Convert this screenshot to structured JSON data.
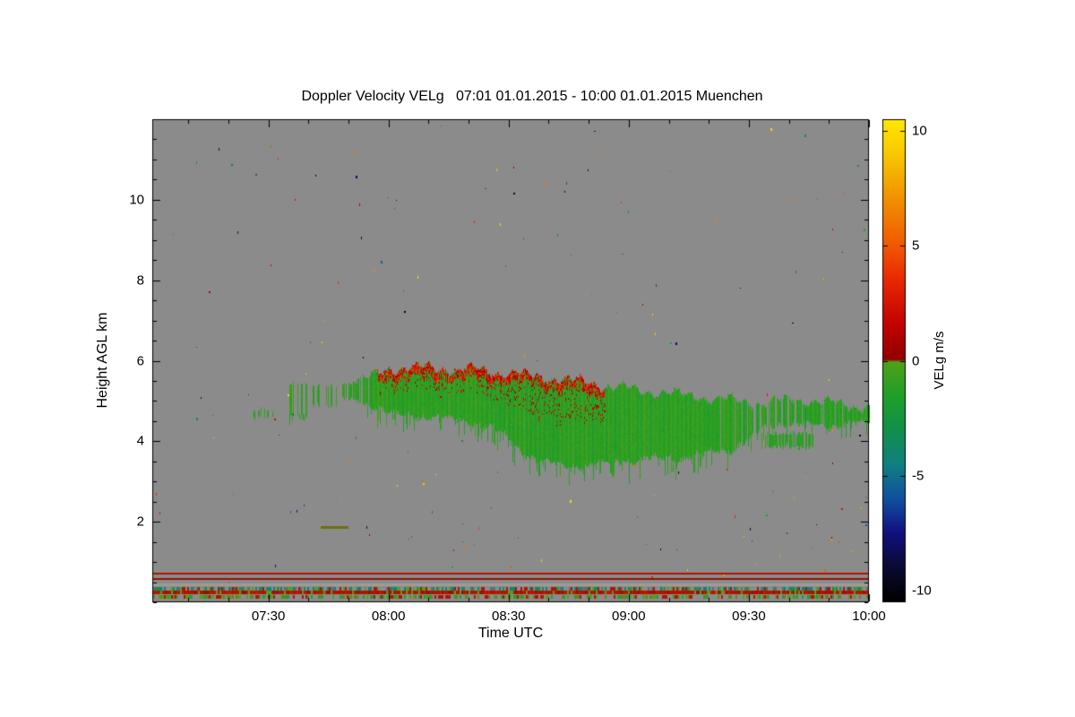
{
  "chart_data": {
    "type": "heatmap",
    "title": "Doppler Velocity VELg   07:01 01.01.2015 - 10:00 01.01.2015 Muenchen",
    "xlabel": "Time UTC",
    "ylabel": "Height AGL km",
    "background_color": "#8b8b8b",
    "axis_color": "#000000",
    "x_axis": {
      "start_minutes": 421,
      "end_minutes": 600,
      "tick_minutes": [
        450,
        480,
        510,
        540,
        570,
        600
      ],
      "tick_labels": [
        "07:30",
        "08:00",
        "08:30",
        "09:00",
        "09:30",
        "10:00"
      ],
      "minor_tick_step_minutes": 10
    },
    "y_axis": {
      "min_km": 0,
      "max_km": 12,
      "tick_values": [
        2,
        4,
        6,
        8,
        10
      ],
      "tick_labels": [
        "2",
        "4",
        "6",
        "8",
        "10"
      ],
      "minor_tick_step_km": 0.5
    },
    "colorbar": {
      "label": "VELg m/s",
      "min": -10.5,
      "max": 10.5,
      "tick_values": [
        10,
        5,
        0,
        -5,
        -10
      ],
      "tick_labels": [
        "10",
        "5",
        "0",
        "-5",
        "-10"
      ],
      "gradient_stops": [
        {
          "v": -10.5,
          "color": "#000000"
        },
        {
          "v": -9.0,
          "color": "#0a0a30"
        },
        {
          "v": -7.5,
          "color": "#101080"
        },
        {
          "v": -6.0,
          "color": "#1050a0"
        },
        {
          "v": -4.5,
          "color": "#108080"
        },
        {
          "v": -3.0,
          "color": "#109048"
        },
        {
          "v": -1.5,
          "color": "#209f28"
        },
        {
          "v": -0.05,
          "color": "#50a018"
        },
        {
          "v": 0.05,
          "color": "#900000"
        },
        {
          "v": 1.5,
          "color": "#c00000"
        },
        {
          "v": 3.5,
          "color": "#e82800"
        },
        {
          "v": 5.0,
          "color": "#f05800"
        },
        {
          "v": 7.0,
          "color": "#f09000"
        },
        {
          "v": 9.0,
          "color": "#f8c800"
        },
        {
          "v": 10.5,
          "color": "#ffe800"
        }
      ]
    },
    "cloud": {
      "base_velocity": -1.1,
      "envelope": [
        [
          472,
          5.5,
          5.1,
          0.45
        ],
        [
          477,
          5.65,
          4.95,
          0.85
        ],
        [
          480,
          5.8,
          4.75,
          1
        ],
        [
          487,
          5.85,
          4.7,
          1
        ],
        [
          494,
          5.8,
          4.65,
          1
        ],
        [
          501,
          5.78,
          4.55,
          1
        ],
        [
          508,
          5.72,
          4.3,
          1
        ],
        [
          512,
          5.68,
          3.95,
          1
        ],
        [
          516,
          5.62,
          3.65,
          1
        ],
        [
          522,
          5.55,
          3.5,
          1
        ],
        [
          528,
          5.48,
          3.45,
          1
        ],
        [
          534,
          5.38,
          3.55,
          1
        ],
        [
          540,
          5.3,
          3.6,
          1
        ],
        [
          547,
          5.22,
          3.65,
          1
        ],
        [
          554,
          5.15,
          3.7,
          1
        ],
        [
          560,
          5.08,
          3.8,
          0.95
        ],
        [
          566,
          5.02,
          3.9,
          0.9
        ],
        [
          570,
          4.98,
          4.1,
          0.75
        ],
        [
          574,
          4.95,
          4.45,
          0.55
        ],
        [
          578,
          5.0,
          4.55,
          0.7
        ],
        [
          582,
          5.05,
          4.5,
          0.8
        ],
        [
          586,
          5.0,
          4.5,
          0.75
        ],
        [
          590,
          4.95,
          4.45,
          0.85
        ],
        [
          595,
          4.9,
          4.5,
          0.9
        ],
        [
          600,
          4.85,
          4.55,
          0.92
        ]
      ],
      "wisps": [
        {
          "t_start": 446,
          "t_end": 451,
          "h_top": 4.85,
          "h_bot": 4.55,
          "density": 0.25
        },
        {
          "t_start": 455,
          "t_end": 460,
          "h_top": 5.5,
          "h_bot": 4.6,
          "density": 0.4
        },
        {
          "t_start": 455,
          "t_end": 459,
          "h_top": 4.7,
          "h_bot": 4.45,
          "density": 0.3
        },
        {
          "t_start": 461,
          "t_end": 467,
          "h_top": 5.45,
          "h_bot": 4.85,
          "density": 0.45
        },
        {
          "t_start": 468,
          "t_end": 473,
          "h_top": 5.5,
          "h_bot": 5.0,
          "density": 0.55
        },
        {
          "t_start": 573,
          "t_end": 586,
          "h_top": 4.25,
          "h_bot": 3.8,
          "density": 0.65
        }
      ],
      "red_top": {
        "t_start": 477,
        "t_end": 534,
        "depth_km": 0.32
      }
    },
    "ground_features": [
      {
        "type": "line",
        "h_km": 0.71,
        "thickness_px": 2,
        "color": "#b01400"
      },
      {
        "type": "line",
        "h_km": 0.58,
        "thickness_px": 2,
        "color": "#941000"
      },
      {
        "type": "band",
        "h_top_km": 0.47,
        "h_bot_km": 0.39,
        "color": "#9b9b9b"
      },
      {
        "type": "speckle_band",
        "h_top_km": 0.38,
        "h_bot_km": 0.3,
        "colors": [
          "#8b8b8b",
          "#50a018",
          "#b01400",
          "#8b8b8b",
          "#109048",
          "#108080",
          "#8b8b8b",
          "#6a6a6a"
        ]
      },
      {
        "type": "speckle_band",
        "h_top_km": 0.28,
        "h_bot_km": 0.2,
        "colors": [
          "#b01400",
          "#c01800",
          "#941000",
          "#50a018",
          "#b01400",
          "#b01400"
        ]
      },
      {
        "type": "speckle_band",
        "h_top_km": 0.17,
        "h_bot_km": 0.09,
        "colors": [
          "#50a018",
          "#8b8b8b",
          "#209f28",
          "#8b8b8b",
          "#6a8014",
          "#b01400",
          "#8b8b8b"
        ]
      },
      {
        "type": "dash",
        "t_start": 463,
        "t_end": 470,
        "h_km": 1.87,
        "thickness_px": 3,
        "color": "#6e6e14"
      }
    ],
    "noise": {
      "speckle_count": 150,
      "low_speckle_count": 25
    }
  }
}
